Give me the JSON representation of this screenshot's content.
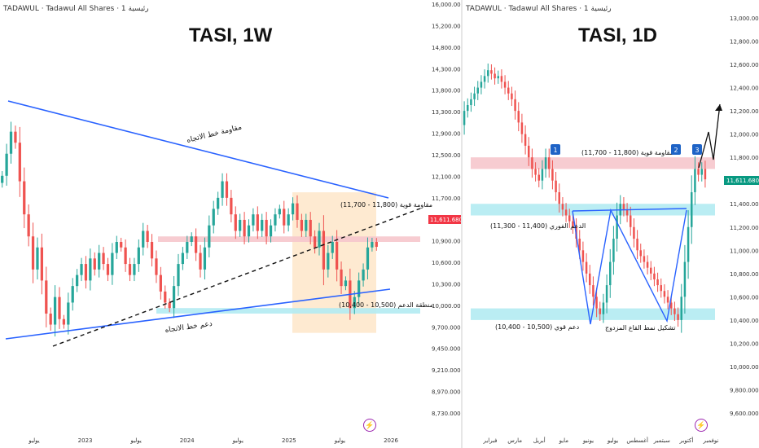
{
  "colors": {
    "up": "#26a69a",
    "down": "#ef5350",
    "trend": "#2962ff",
    "resistance": "#f6c7cc",
    "support": "#b2ebf2",
    "box": "#fde3c2",
    "price_tag": "#f23645",
    "price_tag2": "#089981",
    "icon": "#9c27b0"
  },
  "left": {
    "header": "TADAWUL · Tadawul All Shares · 1 رئيسية",
    "title": "TASI, 1W",
    "price_tag": "11,611.680",
    "labels": {
      "trend_resist": "مقاومة خط الاتجاه",
      "trend_support": "دعم خط الاتجاه",
      "strong_resist": "مقاومة قوية (11,800 - 11,700)",
      "support_zone": "منطقة الدعم (10,500 - 10,400)"
    },
    "icon": "lightning-icon"
  },
  "right": {
    "header": "TADAWUL · Tadawul All Shares · 1 رئيسية",
    "title": "TASI, 1D",
    "price_tag": "11,611.680",
    "labels": {
      "strong_resist": "مقاومة قوية (11,800 - 11,700)",
      "immediate_support": "الدعم الفوري (11,400 - 11,300)",
      "strong_support": "دعم قوي (10,500 - 10,400)",
      "double_bottom": "تشكيل نمط القاع المزدوج",
      "badge1": "1",
      "badge2": "2",
      "badge3": "3"
    },
    "icon": "lightning-icon"
  },
  "chart_data": [
    {
      "type": "candlestick",
      "title": "TASI, 1W",
      "y_ticks": [
        "16,000.000",
        "15,200.000",
        "14,800.000",
        "14,300.000",
        "13,800.000",
        "13,300.000",
        "12,900.000",
        "12,500.000",
        "12,100.000",
        "11,700.000",
        "11,300.000",
        "10,900.000",
        "10,600.000",
        "10,300.000",
        "10,000.000",
        "9,700.000",
        "9,450.000",
        "9,210.000",
        "8,970.000",
        "8,730.000"
      ],
      "x_ticks": [
        "يوليو",
        "2023",
        "يوليو",
        "2024",
        "يوليو",
        "2025",
        "يوليو",
        "2026"
      ],
      "current_price": 11611.68,
      "zones": [
        {
          "name": "resistance",
          "from": 11700,
          "to": 11800
        },
        {
          "name": "support",
          "from": 10400,
          "to": 10500
        }
      ],
      "closes": [
        12900,
        13300,
        13700,
        13500,
        12800,
        12200,
        11800,
        11200,
        11600,
        11000,
        10400,
        10200,
        10700,
        10300,
        10200,
        10600,
        10900,
        11100,
        11300,
        11000,
        11400,
        11200,
        11500,
        11300,
        11100,
        11500,
        11700,
        11600,
        11300,
        11100,
        11300,
        11600,
        11900,
        11700,
        11400,
        11100,
        10800,
        10600,
        10500,
        10900,
        11300,
        11500,
        11700,
        11800,
        11500,
        11200,
        11600,
        12000,
        12300,
        12500,
        12800,
        12500,
        12200,
        11900,
        12100,
        11800,
        12000,
        12200,
        11900,
        12100,
        11800,
        12000,
        12200,
        12300,
        12000,
        12200,
        12400,
        12100,
        11900,
        12100,
        11800,
        11600,
        11900,
        11200,
        11500,
        11700,
        11200,
        10900,
        11000,
        10500,
        10700,
        11000,
        11200,
        11600,
        11700,
        11611
      ]
    },
    {
      "type": "candlestick",
      "title": "TASI, 1D",
      "y_ticks": [
        "13,000.000",
        "12,800.000",
        "12,600.000",
        "12,400.000",
        "12,200.000",
        "12,000.000",
        "11,800.000",
        "11,600.000",
        "11,400.000",
        "11,200.000",
        "11,000.000",
        "10,800.000",
        "10,600.000",
        "10,400.000",
        "10,200.000",
        "10,000.000",
        "9,800.000",
        "9,600.000"
      ],
      "x_ticks": [
        "فبراير",
        "مارس",
        "أبريل",
        "مايو",
        "يونيو",
        "يوليو",
        "أغسطس",
        "سبتمبر",
        "أكتوبر",
        "نوفمبر"
      ],
      "current_price": 11611.68,
      "zones": [
        {
          "name": "resistance",
          "from": 11700,
          "to": 11800
        },
        {
          "name": "support",
          "from": 11300,
          "to": 11400
        },
        {
          "name": "support",
          "from": 10400,
          "to": 10500
        }
      ],
      "closes": [
        12200,
        12250,
        12300,
        12350,
        12400,
        12450,
        12500,
        12550,
        12520,
        12480,
        12500,
        12450,
        12400,
        12350,
        12300,
        12200,
        12100,
        12000,
        11900,
        11800,
        11700,
        11650,
        11600,
        11700,
        11800,
        11700,
        11600,
        11500,
        11400,
        11350,
        11300,
        11250,
        11200,
        11100,
        11000,
        10900,
        10800,
        10700,
        10600,
        10500,
        10450,
        10550,
        10700,
        10900,
        11100,
        11300,
        11400,
        11350,
        11300,
        11200,
        11100,
        11000,
        10950,
        10900,
        10850,
        10800,
        10750,
        10700,
        10650,
        10600,
        10550,
        10500,
        10450,
        10400,
        10600,
        10900,
        11200,
        11500,
        11700,
        11650,
        11700,
        11611
      ]
    }
  ]
}
